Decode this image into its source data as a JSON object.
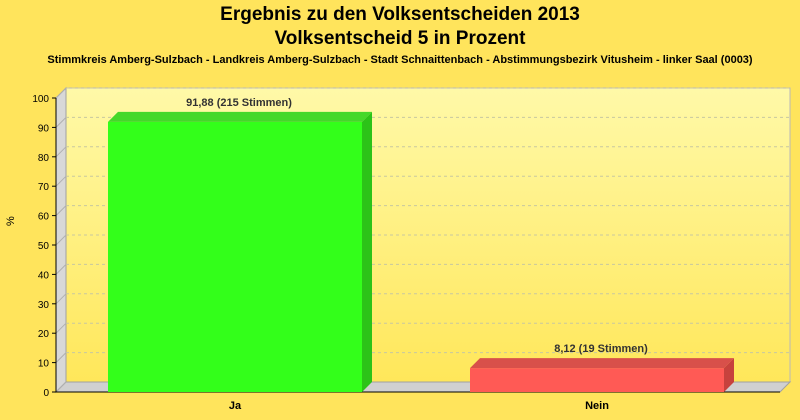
{
  "chart_data": {
    "type": "bar",
    "title": "Ergebnis zu den Volksentscheiden 2013",
    "subtitle": "Volksentscheid 5 in Prozent",
    "caption": "Stimmkreis Amberg-Sulzbach - Landkreis Amberg-Sulzbach - Stadt Schnaittenbach - Abstimmungsbezirk Vitusheim - linker Saal (0003)",
    "xlabel": "",
    "ylabel": "%",
    "ylim": [
      0,
      100
    ],
    "yticks": [
      0,
      10,
      20,
      30,
      40,
      50,
      60,
      70,
      80,
      90,
      100
    ],
    "grid": true,
    "categories": [
      "Ja",
      "Nein"
    ],
    "values": [
      91.88,
      8.12
    ],
    "data_labels": [
      "91,88 (215 Stimmen)",
      "8,12 (19 Stimmen)"
    ],
    "colors": [
      "#33ff1a",
      "#ff5a55"
    ],
    "side_colors": [
      "#2cc318",
      "#c7423d"
    ],
    "top_colors": [
      "#44d82a",
      "#d8504a"
    ]
  },
  "colors": {
    "background": "#ffe45c",
    "plot_background_top": "#fff9a8",
    "plot_background_bottom": "#ffe75a"
  }
}
